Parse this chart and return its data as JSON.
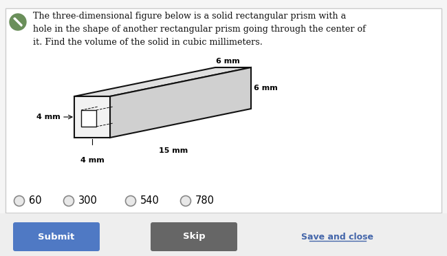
{
  "title_line1": "The three-dimensional figure below is a solid rectangular prism with a",
  "title_line2": "hole in the shape of another rectangular prism going through the center of",
  "title_line3": "it. Find the volume of the solid in cubic millimeters.",
  "bg_color": "#f5f5f5",
  "panel_bg": "#ffffff",
  "panel_border": "#cccccc",
  "dim_6mm_top": "6 mm",
  "dim_6mm_right": "6 mm",
  "dim_15mm": "15 mm",
  "dim_4mm_left": "4 mm",
  "dim_4mm_bottom": "4 mm",
  "choices": [
    "60",
    "300",
    "540",
    "780"
  ],
  "submit_color": "#4f79c4",
  "skip_color": "#666666",
  "save_color": "#4466aa",
  "submit_text": "Submit",
  "skip_text": "Skip",
  "save_text": "Save and close",
  "icon_color": "#6a8f5a",
  "prism_face_color": "#f2f2f2",
  "prism_top_color": "#e0e0e0",
  "prism_right_color": "#d0d0d0",
  "prism_edge_color": "#111111",
  "hole_color": "#ffffff"
}
